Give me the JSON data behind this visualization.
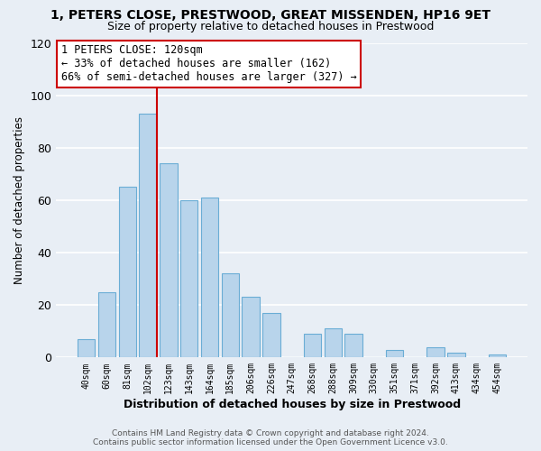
{
  "title_line1": "1, PETERS CLOSE, PRESTWOOD, GREAT MISSENDEN, HP16 9ET",
  "title_line2": "Size of property relative to detached houses in Prestwood",
  "xlabel": "Distribution of detached houses by size in Prestwood",
  "ylabel": "Number of detached properties",
  "bar_labels": [
    "40sqm",
    "60sqm",
    "81sqm",
    "102sqm",
    "123sqm",
    "143sqm",
    "164sqm",
    "185sqm",
    "206sqm",
    "226sqm",
    "247sqm",
    "268sqm",
    "288sqm",
    "309sqm",
    "330sqm",
    "351sqm",
    "371sqm",
    "392sqm",
    "413sqm",
    "434sqm",
    "454sqm"
  ],
  "bar_values": [
    7,
    25,
    65,
    93,
    74,
    60,
    61,
    32,
    23,
    17,
    0,
    9,
    11,
    9,
    0,
    3,
    0,
    4,
    2,
    0,
    1
  ],
  "bar_color": "#b8d4eb",
  "bar_edge_color": "#6aadd5",
  "marker_line_color": "#cc0000",
  "annotation_box_color": "#ffffff",
  "annotation_box_edge_color": "#cc0000",
  "marker_label": "1 PETERS CLOSE: 120sqm",
  "annotation_line1": "← 33% of detached houses are smaller (162)",
  "annotation_line2": "66% of semi-detached houses are larger (327) →",
  "ylim": [
    0,
    120
  ],
  "yticks": [
    0,
    20,
    40,
    60,
    80,
    100,
    120
  ],
  "footer_line1": "Contains HM Land Registry data © Crown copyright and database right 2024.",
  "footer_line2": "Contains public sector information licensed under the Open Government Licence v3.0.",
  "background_color": "#e8eef5",
  "grid_color": "#ffffff",
  "title_fontsize": 10,
  "subtitle_fontsize": 9,
  "ylabel_fontsize": 8.5,
  "xlabel_fontsize": 9,
  "tick_fontsize": 7,
  "footer_fontsize": 6.5
}
